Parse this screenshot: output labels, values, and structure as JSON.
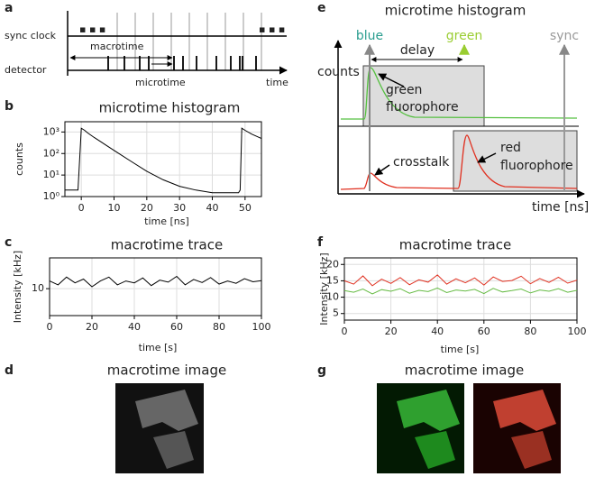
{
  "diagram_a": {
    "label": "a",
    "sync_clock": "sync clock",
    "detector": "detector",
    "macrotime": "macrotime",
    "microtime": "microtime",
    "time": "time",
    "dots": "▪ ▪ ▪"
  },
  "chart_data": [
    {
      "type": "line",
      "panel": "b",
      "title": "microtime histogram",
      "xlabel": "time [ns]",
      "ylabel": "counts",
      "yscale": "log",
      "grid": true,
      "color": "#000000",
      "x": [
        -5,
        -1,
        0,
        1,
        2,
        4,
        6,
        8,
        10,
        15,
        20,
        25,
        30,
        35,
        40,
        45,
        48,
        48.5,
        49,
        50,
        52,
        55
      ],
      "values": [
        2,
        2,
        1500,
        1200,
        900,
        550,
        350,
        220,
        140,
        45,
        15,
        6,
        3,
        2,
        1.5,
        1.5,
        1.5,
        2,
        1500,
        1200,
        800,
        500
      ],
      "xlim": [
        -5,
        55
      ],
      "xticks": [
        0,
        10,
        20,
        30,
        40,
        50
      ],
      "ylim": [
        1,
        3000
      ],
      "yticks": [
        {
          "value": 1,
          "label": "10⁰"
        },
        {
          "value": 10,
          "label": "10¹"
        },
        {
          "value": 100,
          "label": "10²"
        },
        {
          "value": 1000,
          "label": "10³"
        }
      ]
    },
    {
      "type": "line",
      "panel": "c",
      "title": "macrotime trace",
      "xlabel": "time [s]",
      "ylabel": "Intensity [kHz]",
      "grid": true,
      "color": "#000000",
      "x": [
        0,
        4,
        8,
        12,
        16,
        20,
        24,
        28,
        32,
        36,
        40,
        44,
        48,
        52,
        56,
        60,
        64,
        68,
        72,
        76,
        80,
        84,
        88,
        92,
        96,
        100
      ],
      "values": [
        12,
        11,
        13,
        11.5,
        12.5,
        10.5,
        12,
        13,
        11,
        12,
        11.5,
        12.8,
        10.8,
        12.2,
        11.7,
        13.2,
        11,
        12.4,
        11.6,
        12.9,
        11.2,
        12,
        11.4,
        12.6,
        11.8,
        12.1
      ],
      "xlim": [
        0,
        100
      ],
      "xticks": [
        0,
        20,
        40,
        60,
        80,
        100
      ],
      "ylim": [
        3,
        18
      ],
      "yticks": [
        10
      ]
    },
    {
      "type": "line",
      "panel": "f",
      "title": "macrotime trace",
      "xlabel": "time [s]",
      "ylabel": "Intensity [kHz]",
      "grid": true,
      "x": [
        0,
        4,
        8,
        12,
        16,
        20,
        24,
        28,
        32,
        36,
        40,
        44,
        48,
        52,
        56,
        60,
        64,
        68,
        72,
        76,
        80,
        84,
        88,
        92,
        96,
        100
      ],
      "series": [
        {
          "color": "#66bb44",
          "values": [
            12,
            11.5,
            12.5,
            11,
            12.3,
            11.8,
            12.6,
            11.2,
            12.1,
            11.7,
            12.8,
            11.4,
            12.2,
            11.9,
            12.4,
            11.1,
            12.7,
            11.6,
            12,
            12.5,
            11.3,
            12.2,
            11.8,
            12.6,
            11.5,
            12.1
          ]
        },
        {
          "color": "#e03020",
          "values": [
            15,
            14,
            16.5,
            13.5,
            15.5,
            14.2,
            16,
            13.8,
            15.3,
            14.6,
            16.8,
            14,
            15.6,
            14.4,
            15.9,
            13.7,
            16.2,
            14.8,
            15.1,
            16.4,
            14.1,
            15.7,
            14.5,
            16.1,
            14.3,
            15.2
          ]
        }
      ],
      "xlim": [
        0,
        100
      ],
      "xticks": [
        0,
        20,
        40,
        60,
        80,
        100
      ],
      "ylim": [
        3,
        22
      ],
      "yticks": [
        5,
        10,
        15,
        20
      ]
    }
  ],
  "image_d": {
    "label": "d",
    "title": "macrotime image"
  },
  "diagram_e": {
    "label": "e",
    "title": "microtime histogram",
    "blue": "blue",
    "green": "green",
    "sync": "sync",
    "delay": "delay",
    "counts": "counts",
    "green_fluor": [
      "green",
      "fluorophore"
    ],
    "crosstalk": "crosstalk",
    "red_fluor": [
      "red",
      "fluorophore"
    ],
    "time": "time [ns]"
  },
  "image_g": {
    "label": "g",
    "title": "macrotime image"
  }
}
